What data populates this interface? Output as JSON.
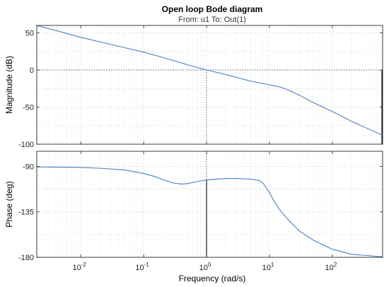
{
  "chart_data": {
    "type": "line",
    "title": "Open loop Bode diagram",
    "subtitle": "From: u1  To: Out(1)",
    "xlabel": "Frequency  (rad/s)",
    "xscale": "log",
    "xlim": [
      0.002,
      630
    ],
    "grid": true,
    "x_ticks": [
      {
        "value": 0.01,
        "base": "10",
        "exp": "-2"
      },
      {
        "value": 0.1,
        "base": "10",
        "exp": "-1"
      },
      {
        "value": 1,
        "base": "10",
        "exp": "0"
      },
      {
        "value": 10,
        "base": "10",
        "exp": "1"
      },
      {
        "value": 100,
        "base": "10",
        "exp": "2"
      }
    ],
    "crossover_frequency": 1,
    "panels": [
      {
        "name": "magnitude",
        "ylabel": "Magnitude (dB)",
        "ylim": [
          -100,
          60
        ],
        "yticks": [
          -100,
          -50,
          0,
          50
        ],
        "x": [
          0.002,
          0.005,
          0.01,
          0.02,
          0.05,
          0.1,
          0.2,
          0.5,
          1,
          2,
          5,
          10,
          15,
          20,
          30,
          50,
          100,
          200,
          630
        ],
        "y": [
          60,
          51,
          44,
          38,
          30,
          24,
          17,
          7,
          0,
          -6,
          -15,
          -20,
          -23,
          -27,
          -34,
          -44,
          -56,
          -69,
          -88
        ]
      },
      {
        "name": "phase",
        "ylabel": "Phase (deg)",
        "ylim": [
          -180,
          -75
        ],
        "yticks": [
          -180,
          -135,
          -90
        ],
        "x": [
          0.002,
          0.005,
          0.01,
          0.02,
          0.05,
          0.1,
          0.15,
          0.2,
          0.3,
          0.4,
          0.5,
          0.7,
          1,
          1.5,
          2,
          3,
          5,
          7,
          8,
          10,
          12,
          15,
          20,
          30,
          50,
          100,
          200,
          630
        ],
        "y": [
          -90.5,
          -90.7,
          -91,
          -91.8,
          -93.5,
          -97,
          -100,
          -103,
          -106.5,
          -107.5,
          -107,
          -105,
          -103.5,
          -102.5,
          -102,
          -102,
          -102.5,
          -104,
          -107,
          -116,
          -125,
          -134,
          -143,
          -154,
          -163,
          -172,
          -177,
          -179.5
        ]
      }
    ]
  }
}
